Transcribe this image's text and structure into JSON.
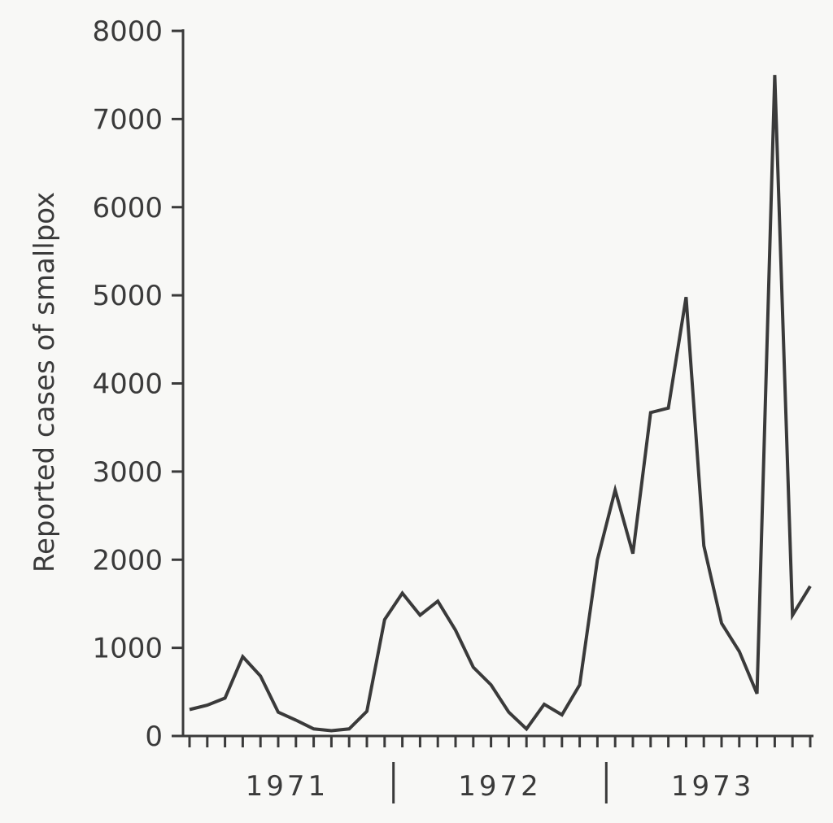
{
  "chart_data": {
    "type": "line",
    "title": "",
    "xlabel": "",
    "ylabel": "Reported cases of smallpox",
    "ylim": [
      0,
      8000
    ],
    "yticks": [
      "0",
      "1000",
      "2000",
      "3000",
      "4000",
      "5000",
      "6000",
      "7000",
      "8000"
    ],
    "year_labels": [
      "1971",
      "1972",
      "1973"
    ],
    "grid": false,
    "legend": "none",
    "line_color": "#3a3a3a",
    "series": [
      {
        "values": [
          300,
          350,
          430,
          900,
          680,
          270,
          180,
          80,
          60,
          80,
          280,
          1320,
          1620,
          1370,
          1530,
          1200,
          780,
          580,
          270,
          80,
          360,
          240,
          580,
          2000,
          2790,
          2070,
          3670,
          3720,
          4980,
          2160,
          1280,
          960,
          480,
          7500,
          1370,
          1700
        ]
      }
    ]
  }
}
